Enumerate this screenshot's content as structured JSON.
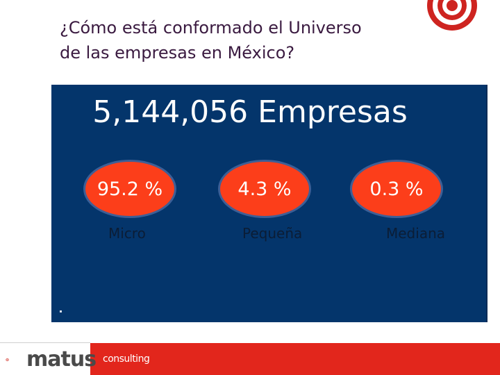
{
  "slide": {
    "title_line1": "¿Cómo está conformado el Universo",
    "title_line2": "de las empresas en México?"
  },
  "panel": {
    "heading": "5,144,056 Empresas",
    "segments": [
      {
        "percent": "95.2 %",
        "label": "Micro"
      },
      {
        "percent": "4.3 %",
        "label": "Pequeña"
      },
      {
        "percent": "0.3 %",
        "label": "Mediana"
      }
    ],
    "footnote": "."
  },
  "footer": {
    "brand": "matus",
    "tagline": "consulting"
  },
  "colors": {
    "panel_background": "#04356b",
    "circle_fill": "#fc3e1a",
    "brand_red": "#e2261c"
  },
  "icons": {
    "top_logo": "concentric-rings-logo-icon",
    "footer_logo": "swirl-logo-icon"
  }
}
